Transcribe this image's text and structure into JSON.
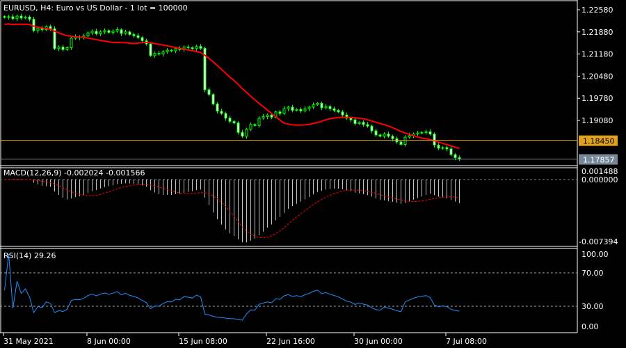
{
  "header": {
    "title": "EURUSD, H4:  Euro vs US Dollar - 1 lot = 100000"
  },
  "colors": {
    "bull": "#00ff00",
    "bear": "#ffffff",
    "ma": "#ff0000",
    "orange_line": "#e0a020",
    "bid_line": "#778899",
    "rsi": "#1e90ff",
    "macd_signal": "#ff0000",
    "macd_hist": "#c0c0c0"
  },
  "chart_data": [
    {
      "type": "candlestick",
      "ylim": [
        1.1776,
        1.2263
      ],
      "price_ticks": [
        "1.22580",
        "1.21880",
        "1.21180",
        "1.20480",
        "1.19780",
        "1.19080"
      ],
      "lines": {
        "level": {
          "label": "1.18450",
          "value": 1.1845
        },
        "bid": {
          "label": "1.17857",
          "value": 1.17857
        }
      },
      "x_ticks": [
        {
          "label": "31 May 2021",
          "index": 0
        },
        {
          "label": "8 Jun 00:00",
          "index": 20
        },
        {
          "label": "15 Jun 08:00",
          "index": 42
        },
        {
          "label": "22 Jun 16:00",
          "index": 63
        },
        {
          "label": "30 Jun 00:00",
          "index": 84
        },
        {
          "label": "7 Jul 08:00",
          "index": 106
        }
      ],
      "closes": [
        1.2234,
        1.2236,
        1.223,
        1.2238,
        1.2232,
        1.2235,
        1.2228,
        1.2192,
        1.22,
        1.2195,
        1.2205,
        1.2198,
        1.2135,
        1.214,
        1.2132,
        1.2138,
        1.2168,
        1.2172,
        1.217,
        1.2175,
        1.2185,
        1.219,
        1.2182,
        1.2188,
        1.2192,
        1.2186,
        1.219,
        1.2195,
        1.2183,
        1.2188,
        1.218,
        1.2176,
        1.217,
        1.216,
        1.215,
        1.2113,
        1.212,
        1.2118,
        1.2125,
        1.213,
        1.2128,
        1.2135,
        1.2132,
        1.214,
        1.2138,
        1.2135,
        1.2142,
        1.2136,
        1.2005,
        1.199,
        1.196,
        1.1937,
        1.193,
        1.1915,
        1.1905,
        1.19,
        1.187,
        1.1858,
        1.188,
        1.1895,
        1.1892,
        1.1915,
        1.192,
        1.1925,
        1.1918,
        1.1935,
        1.193,
        1.1945,
        1.195,
        1.194,
        1.1943,
        1.1938,
        1.1945,
        1.195,
        1.1958,
        1.1962,
        1.1948,
        1.1952,
        1.1945,
        1.194,
        1.1935,
        1.1925,
        1.1915,
        1.191,
        1.1898,
        1.1902,
        1.1895,
        1.189,
        1.1875,
        1.1862,
        1.1858,
        1.1865,
        1.1858,
        1.185,
        1.184,
        1.1832,
        1.1855,
        1.186,
        1.1865,
        1.1868,
        1.187,
        1.1872,
        1.1865,
        1.183,
        1.182,
        1.1822,
        1.1818,
        1.18,
        1.179,
        1.17857
      ]
    },
    {
      "type": "bar",
      "label": "MACD(12,26,9) -0.002024 -0.001566",
      "ticks": [
        "0.001488",
        "0.000000",
        "-0.007394"
      ],
      "ylim": [
        -0.007394,
        0.001488
      ]
    },
    {
      "type": "line",
      "label": "RSI(14) 29.26",
      "ticks": [
        "100.00",
        "70.00",
        "30.00",
        "0.00"
      ],
      "ylim": [
        0,
        100
      ],
      "levels": [
        70,
        30
      ]
    }
  ]
}
